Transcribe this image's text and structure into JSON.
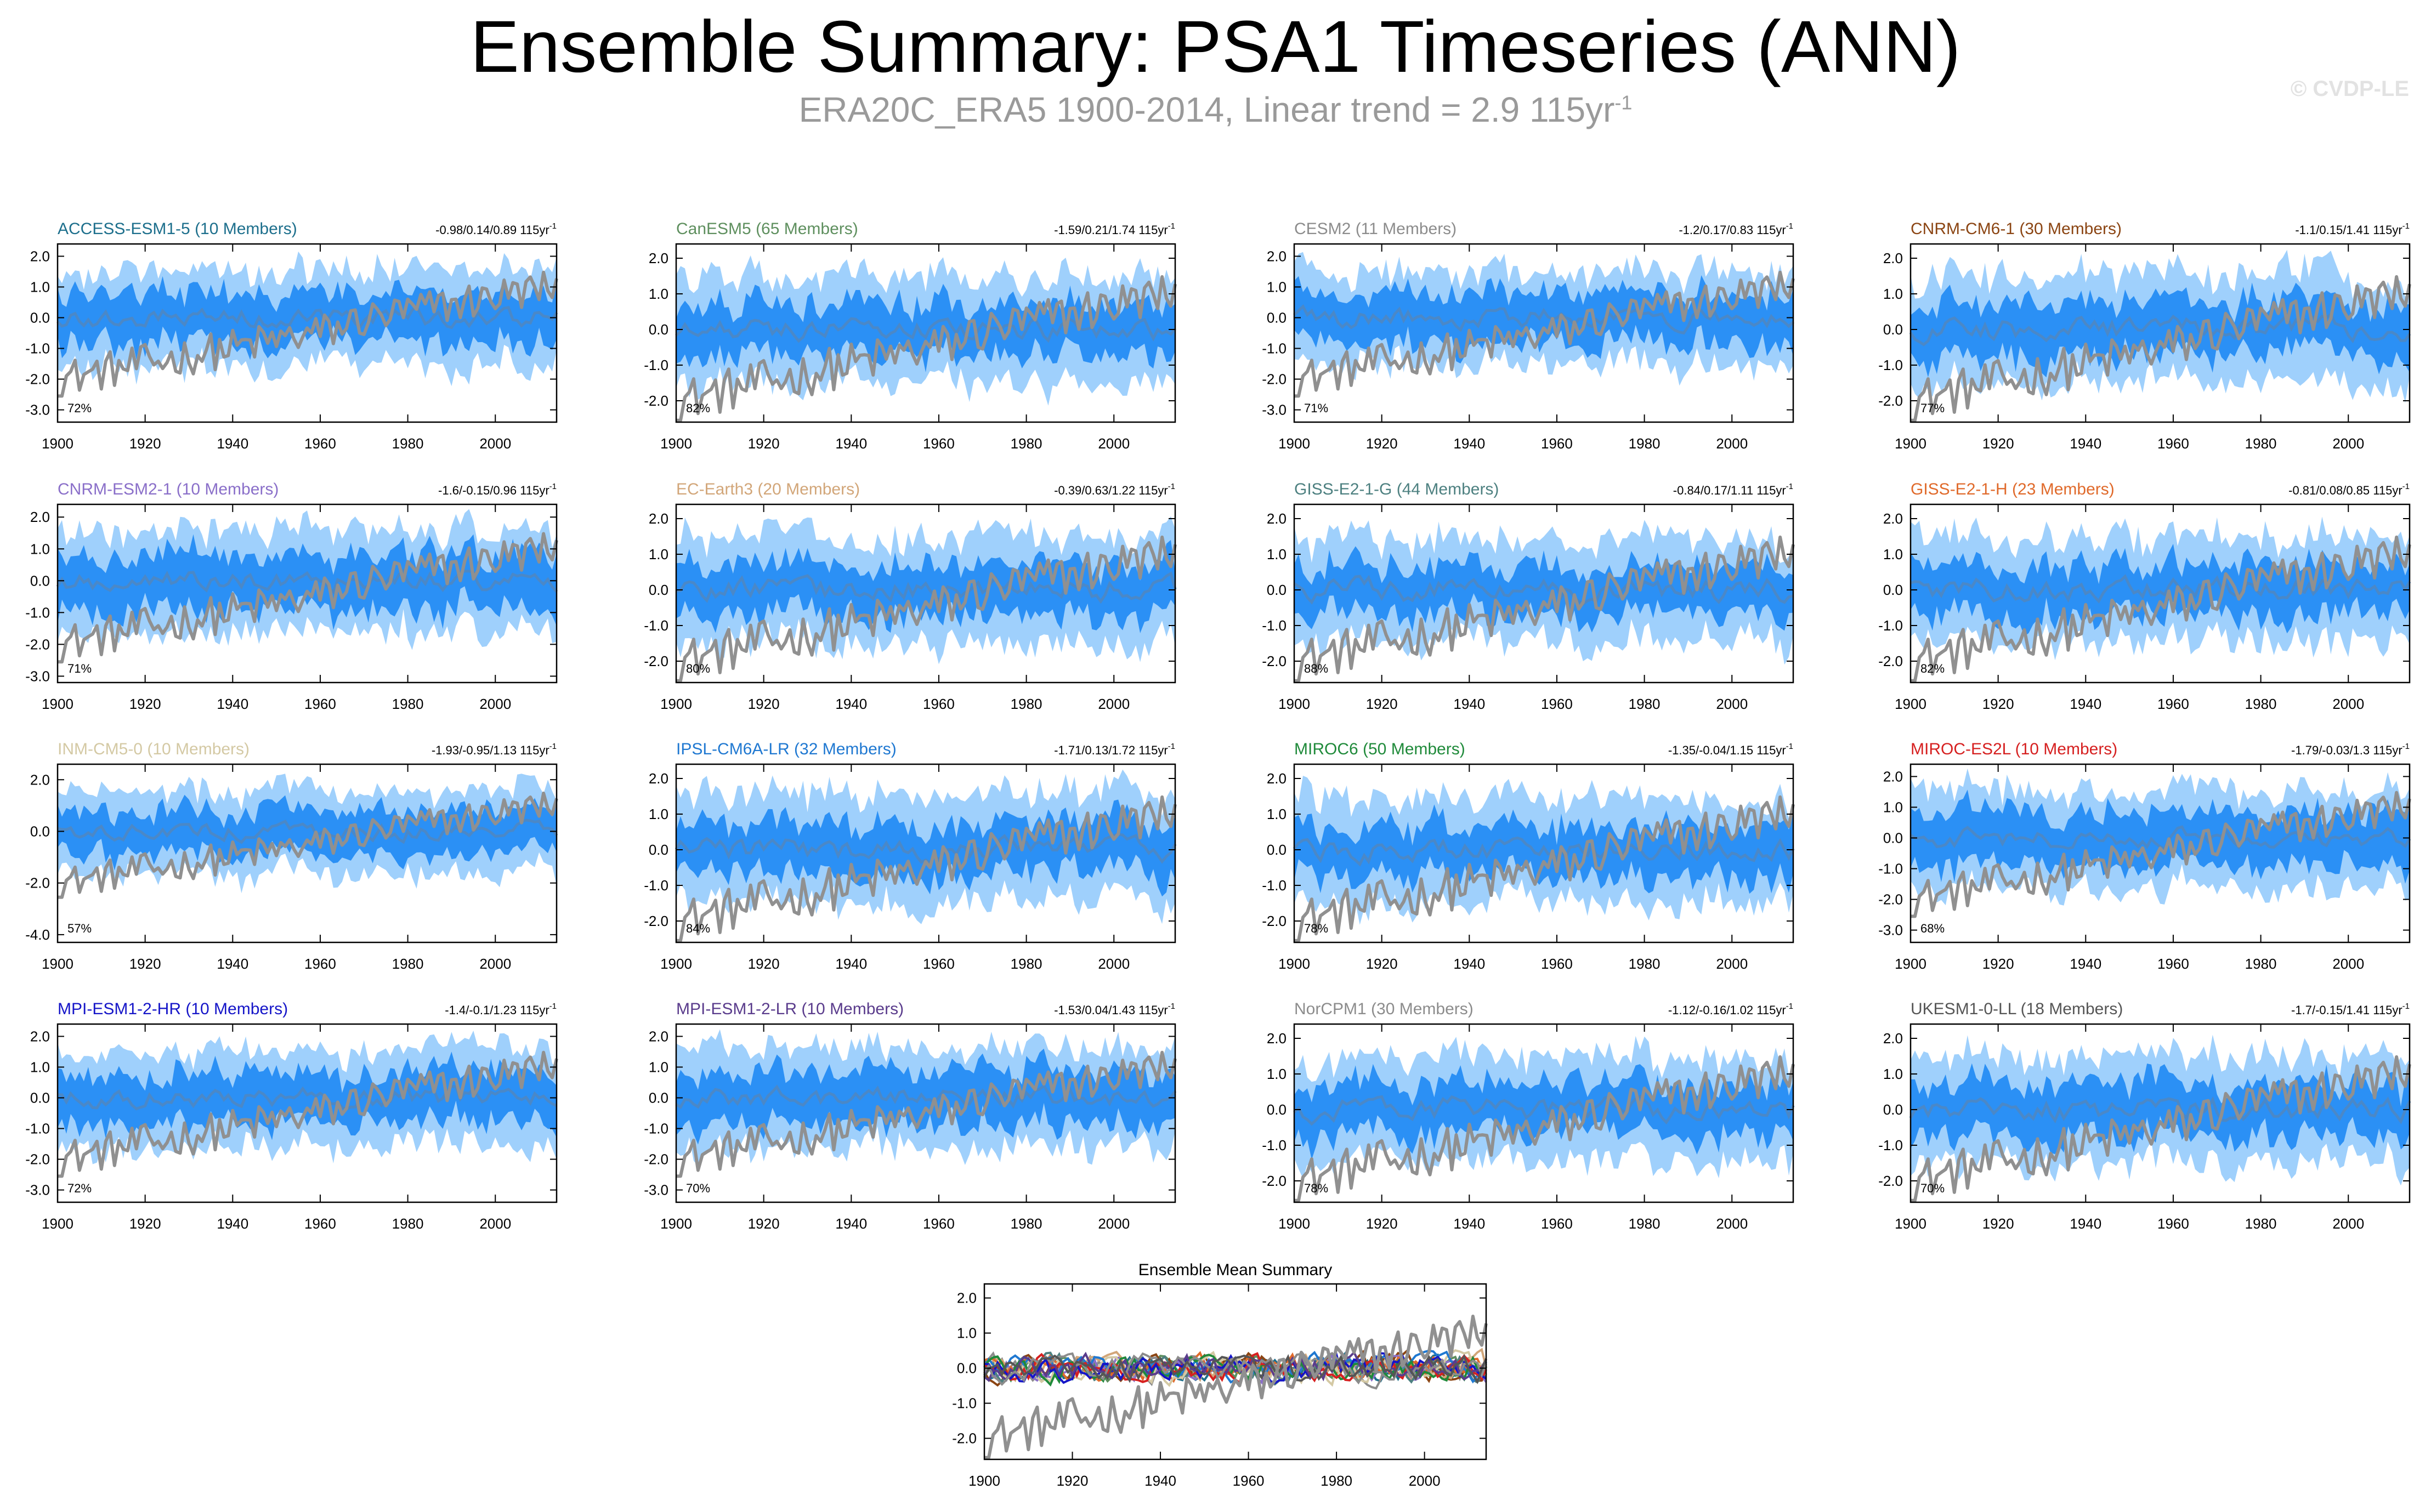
{
  "title": "Ensemble Summary: PSA1 Timeseries (ANN)",
  "subtitle": {
    "text": "ERA20C_ERA5 1900-2014, Linear trend = 2.9 115yr",
    "sup": "-1"
  },
  "watermark": "© CVDP-LE",
  "colors": {
    "band_outer": "#9fd0fc",
    "band_inner": "#2b90f5",
    "ens_mean": "#4a88c8",
    "obs": "#909090",
    "axis": "#000000"
  },
  "chart_data": [
    {
      "type": "line",
      "name": "ACCESS-ESM1-5",
      "members": 10,
      "title": "ACCESS-ESM1-5 (10 Members)",
      "title_color": "#1d6f8c",
      "stats": "-0.98/0.14/0.89 115yr",
      "stats_sup": "-1",
      "percent": "72%",
      "ylim": [
        -3.4,
        2.4
      ],
      "yticks": [
        "2.0",
        "1.0",
        "0.0",
        "-1.0",
        "-2.0",
        "-3.0"
      ],
      "ytick_values": [
        2,
        1,
        0,
        -1,
        -2,
        -3
      ],
      "xlim": [
        1900,
        2014
      ],
      "xticks": [
        "1900",
        "1920",
        "1940",
        "1960",
        "1980",
        "2000"
      ],
      "outer_spread": 1.55,
      "inner_spread": 0.8
    },
    {
      "type": "line",
      "name": "CanESM5",
      "members": 65,
      "title": "CanESM5 (65 Members)",
      "title_color": "#5e8f5e",
      "stats": "-1.59/0.21/1.74 115yr",
      "stats_sup": "-1",
      "percent": "82%",
      "ylim": [
        -2.6,
        2.4
      ],
      "yticks": [
        "2.0",
        "1.0",
        "0.0",
        "-1.0",
        "-2.0"
      ],
      "ytick_values": [
        2,
        1,
        0,
        -1,
        -2
      ],
      "xlim": [
        1900,
        2014
      ],
      "xticks": [
        "1900",
        "1920",
        "1940",
        "1960",
        "1980",
        "2000"
      ],
      "outer_spread": 1.5,
      "inner_spread": 0.7
    },
    {
      "type": "line",
      "name": "CESM2",
      "members": 11,
      "title": "CESM2 (11 Members)",
      "title_color": "#8c8c8c",
      "stats": "-1.2/0.17/0.83 115yr",
      "stats_sup": "-1",
      "percent": "71%",
      "ylim": [
        -3.4,
        2.4
      ],
      "yticks": [
        "2.0",
        "1.0",
        "0.0",
        "-1.0",
        "-2.0",
        "-3.0"
      ],
      "ytick_values": [
        2,
        1,
        0,
        -1,
        -2,
        -3
      ],
      "xlim": [
        1900,
        2014
      ],
      "xticks": [
        "1900",
        "1920",
        "1940",
        "1960",
        "1980",
        "2000"
      ],
      "outer_spread": 1.5,
      "inner_spread": 0.8
    },
    {
      "type": "line",
      "name": "CNRM-CM6-1",
      "members": 30,
      "title": "CNRM-CM6-1 (30 Members)",
      "title_color": "#8b4513",
      "stats": "-1.1/0.15/1.41 115yr",
      "stats_sup": "-1",
      "percent": "77%",
      "ylim": [
        -2.6,
        2.4
      ],
      "yticks": [
        "2.0",
        "1.0",
        "0.0",
        "-1.0",
        "-2.0"
      ],
      "ytick_values": [
        2,
        1,
        0,
        -1,
        -2
      ],
      "xlim": [
        1900,
        2014
      ],
      "xticks": [
        "1900",
        "1920",
        "1940",
        "1960",
        "1980",
        "2000"
      ],
      "outer_spread": 1.5,
      "inner_spread": 0.75
    },
    {
      "type": "line",
      "name": "CNRM-ESM2-1",
      "members": 10,
      "title": "CNRM-ESM2-1 (10 Members)",
      "title_color": "#8a6fc9",
      "stats": "-1.6/-0.15/0.96 115yr",
      "stats_sup": "-1",
      "percent": "71%",
      "ylim": [
        -3.2,
        2.4
      ],
      "yticks": [
        "2.0",
        "1.0",
        "0.0",
        "-1.0",
        "-2.0",
        "-3.0"
      ],
      "ytick_values": [
        2,
        1,
        0,
        -1,
        -2,
        -3
      ],
      "xlim": [
        1900,
        2014
      ],
      "xticks": [
        "1900",
        "1920",
        "1940",
        "1960",
        "1980",
        "2000"
      ],
      "outer_spread": 1.6,
      "inner_spread": 0.85
    },
    {
      "type": "line",
      "name": "EC-Earth3",
      "members": 20,
      "title": "EC-Earth3 (20 Members)",
      "title_color": "#d2a679",
      "stats": "-0.39/0.63/1.22 115yr",
      "stats_sup": "-1",
      "percent": "80%",
      "ylim": [
        -2.6,
        2.4
      ],
      "yticks": [
        "2.0",
        "1.0",
        "0.0",
        "-1.0",
        "-2.0"
      ],
      "ytick_values": [
        2,
        1,
        0,
        -1,
        -2
      ],
      "xlim": [
        1900,
        2014
      ],
      "xticks": [
        "1900",
        "1920",
        "1940",
        "1960",
        "1980",
        "2000"
      ],
      "outer_spread": 1.5,
      "inner_spread": 0.7
    },
    {
      "type": "line",
      "name": "GISS-E2-1-G",
      "members": 44,
      "title": "GISS-E2-1-G (44 Members)",
      "title_color": "#4d8080",
      "stats": "-0.84/0.17/1.11 115yr",
      "stats_sup": "-1",
      "percent": "88%",
      "ylim": [
        -2.6,
        2.4
      ],
      "yticks": [
        "2.0",
        "1.0",
        "0.0",
        "-1.0",
        "-2.0"
      ],
      "ytick_values": [
        2,
        1,
        0,
        -1,
        -2
      ],
      "xlim": [
        1900,
        2014
      ],
      "xticks": [
        "1900",
        "1920",
        "1940",
        "1960",
        "1980",
        "2000"
      ],
      "outer_spread": 1.4,
      "inner_spread": 0.65
    },
    {
      "type": "line",
      "name": "GISS-E2-1-H",
      "members": 23,
      "title": "GISS-E2-1-H (23 Members)",
      "title_color": "#e06a2b",
      "stats": "-0.81/0.08/0.85 115yr",
      "stats_sup": "-1",
      "percent": "82%",
      "ylim": [
        -2.6,
        2.4
      ],
      "yticks": [
        "2.0",
        "1.0",
        "0.0",
        "-1.0",
        "-2.0"
      ],
      "ytick_values": [
        2,
        1,
        0,
        -1,
        -2
      ],
      "xlim": [
        1900,
        2014
      ],
      "xticks": [
        "1900",
        "1920",
        "1940",
        "1960",
        "1980",
        "2000"
      ],
      "outer_spread": 1.45,
      "inner_spread": 0.7
    },
    {
      "type": "line",
      "name": "INM-CM5-0",
      "members": 10,
      "title": "INM-CM5-0 (10 Members)",
      "title_color": "#d4c9a4",
      "stats": "-1.93/-0.95/1.13 115yr",
      "stats_sup": "-1",
      "percent": "57%",
      "ylim": [
        -4.3,
        2.6
      ],
      "yticks": [
        "2.0",
        "0.0",
        "-2.0",
        "-4.0"
      ],
      "ytick_values": [
        2,
        0,
        -2,
        -4
      ],
      "xlim": [
        1900,
        2014
      ],
      "xticks": [
        "1900",
        "1920",
        "1940",
        "1960",
        "1980",
        "2000"
      ],
      "outer_spread": 1.6,
      "inner_spread": 0.85
    },
    {
      "type": "line",
      "name": "IPSL-CM6A-LR",
      "members": 32,
      "title": "IPSL-CM6A-LR (32 Members)",
      "title_color": "#1f78d1",
      "stats": "-1.71/0.13/1.72 115yr",
      "stats_sup": "-1",
      "percent": "84%",
      "ylim": [
        -2.6,
        2.4
      ],
      "yticks": [
        "2.0",
        "1.0",
        "0.0",
        "-1.0",
        "-2.0"
      ],
      "ytick_values": [
        2,
        1,
        0,
        -1,
        -2
      ],
      "xlim": [
        1900,
        2014
      ],
      "xticks": [
        "1900",
        "1920",
        "1940",
        "1960",
        "1980",
        "2000"
      ],
      "outer_spread": 1.5,
      "inner_spread": 0.7
    },
    {
      "type": "line",
      "name": "MIROC6",
      "members": 50,
      "title": "MIROC6 (50 Members)",
      "title_color": "#1f8a3a",
      "stats": "-1.35/-0.04/1.15 115yr",
      "stats_sup": "-1",
      "percent": "78%",
      "ylim": [
        -2.6,
        2.4
      ],
      "yticks": [
        "2.0",
        "1.0",
        "0.0",
        "-1.0",
        "-2.0"
      ],
      "ytick_values": [
        2,
        1,
        0,
        -1,
        -2
      ],
      "xlim": [
        1900,
        2014
      ],
      "xticks": [
        "1900",
        "1920",
        "1940",
        "1960",
        "1980",
        "2000"
      ],
      "outer_spread": 1.45,
      "inner_spread": 0.7
    },
    {
      "type": "line",
      "name": "MIROC-ES2L",
      "members": 10,
      "title": "MIROC-ES2L (10 Members)",
      "title_color": "#d62020",
      "stats": "-1.79/-0.03/1.3 115yr",
      "stats_sup": "-1",
      "percent": "68%",
      "ylim": [
        -3.4,
        2.4
      ],
      "yticks": [
        "2.0",
        "1.0",
        "0.0",
        "-1.0",
        "-2.0",
        "-3.0"
      ],
      "ytick_values": [
        2,
        1,
        0,
        -1,
        -2,
        -3
      ],
      "xlim": [
        1900,
        2014
      ],
      "xticks": [
        "1900",
        "1920",
        "1940",
        "1960",
        "1980",
        "2000"
      ],
      "outer_spread": 1.6,
      "inner_spread": 0.85
    },
    {
      "type": "line",
      "name": "MPI-ESM1-2-HR",
      "members": 10,
      "title": "MPI-ESM1-2-HR (10 Members)",
      "title_color": "#1515c8",
      "stats": "-1.4/-0.1/1.23 115yr",
      "stats_sup": "-1",
      "percent": "72%",
      "ylim": [
        -3.4,
        2.4
      ],
      "yticks": [
        "2.0",
        "1.0",
        "0.0",
        "-1.0",
        "-2.0",
        "-3.0"
      ],
      "ytick_values": [
        2,
        1,
        0,
        -1,
        -2,
        -3
      ],
      "xlim": [
        1900,
        2014
      ],
      "xticks": [
        "1900",
        "1920",
        "1940",
        "1960",
        "1980",
        "2000"
      ],
      "outer_spread": 1.55,
      "inner_spread": 0.8
    },
    {
      "type": "line",
      "name": "MPI-ESM1-2-LR",
      "members": 10,
      "title": "MPI-ESM1-2-LR (10 Members)",
      "title_color": "#5a3c8c",
      "stats": "-1.53/0.04/1.43 115yr",
      "stats_sup": "-1",
      "percent": "70%",
      "ylim": [
        -3.4,
        2.4
      ],
      "yticks": [
        "2.0",
        "1.0",
        "0.0",
        "-1.0",
        "-2.0",
        "-3.0"
      ],
      "ytick_values": [
        2,
        1,
        0,
        -1,
        -2,
        -3
      ],
      "xlim": [
        1900,
        2014
      ],
      "xticks": [
        "1900",
        "1920",
        "1940",
        "1960",
        "1980",
        "2000"
      ],
      "outer_spread": 1.6,
      "inner_spread": 0.85
    },
    {
      "type": "line",
      "name": "NorCPM1",
      "members": 30,
      "title": "NorCPM1 (30 Members)",
      "title_color": "#8c8c8c",
      "stats": "-1.12/-0.16/1.02 115yr",
      "stats_sup": "-1",
      "percent": "78%",
      "ylim": [
        -2.6,
        2.4
      ],
      "yticks": [
        "2.0",
        "1.0",
        "0.0",
        "-1.0",
        "-2.0"
      ],
      "ytick_values": [
        2,
        1,
        0,
        -1,
        -2
      ],
      "xlim": [
        1900,
        2014
      ],
      "xticks": [
        "1900",
        "1920",
        "1940",
        "1960",
        "1980",
        "2000"
      ],
      "outer_spread": 1.45,
      "inner_spread": 0.7
    },
    {
      "type": "line",
      "name": "UKESM1-0-LL",
      "members": 18,
      "title": "UKESM1-0-LL (18 Members)",
      "title_color": "#555555",
      "stats": "-1.7/-0.15/1.41 115yr",
      "stats_sup": "-1",
      "percent": "70%",
      "ylim": [
        -2.6,
        2.4
      ],
      "yticks": [
        "2.0",
        "1.0",
        "0.0",
        "-1.0",
        "-2.0"
      ],
      "ytick_values": [
        2,
        1,
        0,
        -1,
        -2
      ],
      "xlim": [
        1900,
        2014
      ],
      "xticks": [
        "1900",
        "1920",
        "1940",
        "1960",
        "1980",
        "2000"
      ],
      "outer_spread": 1.5,
      "inner_spread": 0.75
    }
  ],
  "summary": {
    "type": "line",
    "title": "Ensemble Mean Summary",
    "title_color": "#000000",
    "ylim": [
      -2.6,
      2.4
    ],
    "yticks": [
      "2.0",
      "1.0",
      "0.0",
      "-1.0",
      "-2.0"
    ],
    "ytick_values": [
      2,
      1,
      0,
      -1,
      -2
    ],
    "xlim": [
      1900,
      2014
    ],
    "xticks": [
      "1900",
      "1920",
      "1940",
      "1960",
      "1980",
      "2000"
    ],
    "series_colors": [
      "#1d6f8c",
      "#5e8f5e",
      "#8c8c8c",
      "#8b4513",
      "#8a6fc9",
      "#d2a679",
      "#4d8080",
      "#e06a2b",
      "#d4c9a4",
      "#1f78d1",
      "#1f8a3a",
      "#d62020",
      "#1515c8",
      "#5a3c8c",
      "#8c8c8c",
      "#555555"
    ]
  }
}
